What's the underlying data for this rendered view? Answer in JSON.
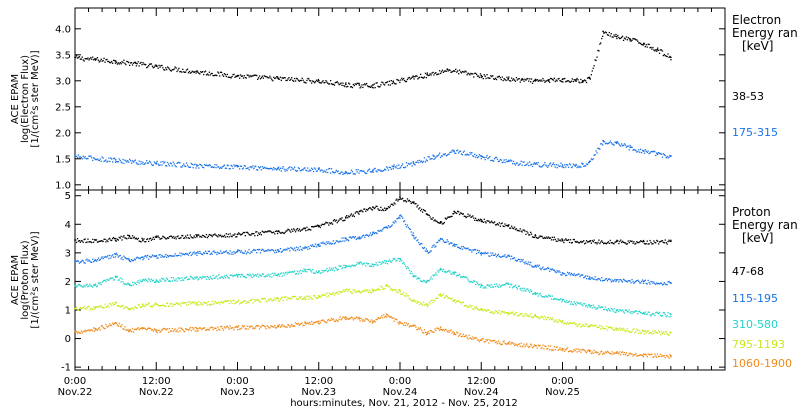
{
  "chart_data": [
    {
      "type": "scatter",
      "title": "",
      "ylabel_lines": [
        "ACE  EPAM",
        "log(Electron Flux)",
        "[1/(cm²s ster MeV)]"
      ],
      "ylim": [
        0.9,
        4.4
      ],
      "yticks": [
        "1.0",
        "1.5",
        "2.0",
        "2.5",
        "3.0",
        "3.5",
        "4.0"
      ],
      "ytick_values": [
        1.0,
        1.5,
        2.0,
        2.5,
        3.0,
        3.5,
        4.0
      ],
      "legend_title_lines": [
        "Electron",
        "Energy ran",
        "[keV]"
      ],
      "series": [
        {
          "name": "38-53",
          "color": "#000000",
          "x": [
            0,
            3,
            6,
            9,
            12,
            18,
            24,
            30,
            36,
            40,
            42,
            44,
            47,
            50,
            52,
            55,
            60,
            64,
            66,
            68,
            70,
            72,
            74,
            75,
            76,
            78,
            80,
            82,
            84,
            86,
            88
          ],
          "y": [
            3.45,
            3.42,
            3.38,
            3.34,
            3.28,
            3.18,
            3.1,
            3.05,
            3.0,
            2.93,
            2.92,
            2.92,
            2.98,
            3.08,
            3.12,
            3.22,
            3.1,
            3.04,
            3.02,
            3.0,
            3.02,
            3.03,
            3.02,
            3.0,
            3.05,
            3.95,
            3.85,
            3.8,
            3.72,
            3.6,
            3.45
          ]
        },
        {
          "name": "175-315",
          "color": "#1a73e8",
          "x": [
            0,
            6,
            12,
            18,
            24,
            30,
            36,
            40,
            44,
            47,
            50,
            53,
            56,
            60,
            64,
            68,
            72,
            74,
            75,
            76,
            78,
            80,
            82,
            84,
            86,
            88
          ],
          "y": [
            1.55,
            1.48,
            1.42,
            1.38,
            1.35,
            1.32,
            1.3,
            1.25,
            1.28,
            1.35,
            1.42,
            1.55,
            1.65,
            1.55,
            1.45,
            1.4,
            1.38,
            1.38,
            1.4,
            1.45,
            1.85,
            1.8,
            1.72,
            1.65,
            1.6,
            1.55
          ]
        }
      ]
    },
    {
      "type": "scatter",
      "title": "",
      "ylabel_lines": [
        "ACE  EPAM",
        "log(Proton Flux)",
        "[1/(cm²s ster MeV)]"
      ],
      "ylim": [
        -1.1,
        5.2
      ],
      "yticks": [
        "-1",
        "0",
        "1",
        "2",
        "3",
        "4",
        "5"
      ],
      "ytick_values": [
        -1,
        0,
        1,
        2,
        3,
        4,
        5
      ],
      "legend_title_lines": [
        "Proton",
        "Energy ran",
        "[keV]"
      ],
      "series": [
        {
          "name": "47-68",
          "color": "#000000",
          "x": [
            0,
            3,
            6,
            8,
            10,
            12,
            18,
            24,
            30,
            34,
            36,
            40,
            42,
            44,
            46,
            48,
            50,
            52,
            54,
            56,
            60,
            64,
            68,
            72,
            76,
            80,
            84,
            88
          ],
          "y": [
            3.45,
            3.45,
            3.5,
            3.6,
            3.45,
            3.55,
            3.6,
            3.65,
            3.75,
            3.85,
            3.95,
            4.25,
            4.45,
            4.6,
            4.55,
            4.95,
            4.75,
            4.35,
            4.05,
            4.45,
            4.15,
            3.95,
            3.6,
            3.45,
            3.4,
            3.4,
            3.4,
            3.4
          ]
        },
        {
          "name": "115-195",
          "color": "#1a73e8",
          "x": [
            0,
            3,
            6,
            8,
            10,
            12,
            18,
            24,
            30,
            34,
            36,
            40,
            42,
            44,
            46,
            48,
            50,
            52,
            54,
            56,
            60,
            64,
            68,
            72,
            76,
            80,
            84,
            88
          ],
          "y": [
            2.7,
            2.75,
            2.95,
            2.75,
            2.85,
            2.9,
            3.0,
            3.05,
            3.1,
            3.2,
            3.3,
            3.5,
            3.55,
            3.7,
            3.9,
            4.3,
            3.6,
            3.05,
            3.5,
            3.3,
            3.0,
            2.9,
            2.55,
            2.3,
            2.15,
            2.05,
            2.0,
            1.95
          ]
        },
        {
          "name": "310-580",
          "color": "#22d3c8",
          "x": [
            0,
            3,
            6,
            8,
            10,
            12,
            18,
            24,
            30,
            34,
            36,
            40,
            42,
            44,
            46,
            48,
            50,
            52,
            54,
            56,
            60,
            64,
            68,
            72,
            76,
            80,
            84,
            88
          ],
          "y": [
            1.85,
            1.9,
            2.15,
            1.9,
            2.05,
            2.05,
            2.15,
            2.2,
            2.25,
            2.4,
            2.35,
            2.55,
            2.65,
            2.6,
            2.7,
            2.8,
            2.2,
            2.0,
            2.45,
            2.3,
            1.85,
            1.9,
            1.6,
            1.35,
            1.15,
            1.0,
            0.9,
            0.85
          ]
        },
        {
          "name": "795-1193",
          "color": "#c8e81a",
          "x": [
            0,
            3,
            6,
            8,
            10,
            12,
            18,
            24,
            30,
            34,
            36,
            40,
            42,
            44,
            46,
            48,
            50,
            52,
            54,
            56,
            60,
            64,
            68,
            72,
            76,
            80,
            84,
            88
          ],
          "y": [
            1.05,
            1.1,
            1.25,
            1.05,
            1.2,
            1.2,
            1.25,
            1.3,
            1.4,
            1.45,
            1.5,
            1.7,
            1.65,
            1.7,
            1.85,
            1.65,
            1.35,
            1.2,
            1.55,
            1.35,
            1.0,
            0.9,
            0.8,
            0.6,
            0.45,
            0.35,
            0.25,
            0.2
          ]
        },
        {
          "name": "1060-1900",
          "color": "#f08a1a",
          "x": [
            0,
            3,
            6,
            8,
            10,
            12,
            18,
            24,
            30,
            34,
            36,
            40,
            42,
            44,
            46,
            48,
            50,
            52,
            54,
            56,
            60,
            64,
            68,
            72,
            76,
            80,
            84,
            88
          ],
          "y": [
            0.25,
            0.35,
            0.55,
            0.3,
            0.35,
            0.3,
            0.35,
            0.4,
            0.45,
            0.55,
            0.6,
            0.75,
            0.7,
            0.6,
            0.85,
            0.55,
            0.45,
            0.2,
            0.4,
            0.2,
            -0.05,
            -0.15,
            -0.25,
            -0.35,
            -0.45,
            -0.5,
            -0.55,
            -0.6
          ]
        }
      ]
    }
  ],
  "x_axis": {
    "xlim": [
      0,
      96
    ],
    "ticks": [
      {
        "x": 0,
        "line1": "0:00",
        "line2": "Nov.22"
      },
      {
        "x": 12,
        "line1": "12:00",
        "line2": "Nov.22"
      },
      {
        "x": 24,
        "line1": "0:00",
        "line2": "Nov.23"
      },
      {
        "x": 36,
        "line1": "12:00",
        "line2": "Nov.23"
      },
      {
        "x": 48,
        "line1": "0:00",
        "line2": "Nov.24"
      },
      {
        "x": 60,
        "line1": "12:00",
        "line2": "Nov.24"
      },
      {
        "x": 72,
        "line1": "0:00",
        "line2": "Nov.25"
      }
    ],
    "xlabel": "hours:minutes, Nov. 21, 2012 - Nov. 25, 2012"
  }
}
